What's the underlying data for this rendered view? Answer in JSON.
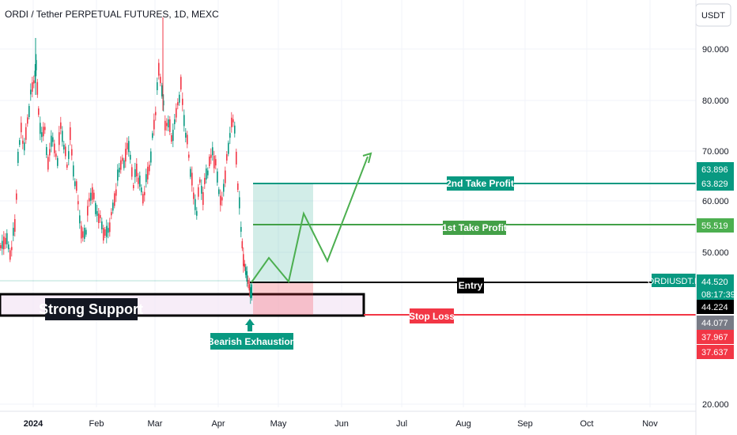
{
  "header": {
    "title": "ORDI / Tether PERPETUAL FUTURES, 1D, MEXC",
    "currency_button": "USDT"
  },
  "chart_data": {
    "type": "candlestick",
    "symbol_tag": "ORDIUSDT.P",
    "y_axis": {
      "ticks": [
        90,
        80,
        70,
        60,
        50,
        20
      ],
      "tick_labels": [
        "90.000",
        "80.000",
        "70.000",
        "60.000",
        "50.000",
        "20.000"
      ]
    },
    "x_axis": {
      "tick_labels": [
        "2024",
        "Feb",
        "Mar",
        "Apr",
        "May",
        "Jun",
        "Jul",
        "Aug",
        "Sep",
        "Oct",
        "Nov"
      ]
    },
    "price_tags": [
      {
        "label": "63.896",
        "value": 63.896,
        "color": "#089981"
      },
      {
        "label": "63.829",
        "value": 63.829,
        "color": "#089981"
      },
      {
        "label": "55.519",
        "value": 55.519,
        "color": "#4caf50"
      },
      {
        "label": "44.520",
        "value": 44.52,
        "color": "#089981",
        "sub": "08:17:39"
      },
      {
        "label": "44.224",
        "value": 44.224,
        "color": "#000000"
      },
      {
        "label": "44.077",
        "value": 44.077,
        "color": "#787b86"
      },
      {
        "label": "37.967",
        "value": 37.967,
        "color": "#f23645"
      },
      {
        "label": "37.637",
        "value": 37.637,
        "color": "#f23645"
      }
    ],
    "levels": [
      {
        "name": "2nd Take Profit",
        "value": 63.829,
        "color": "#089981"
      },
      {
        "name": "1st Take Profit",
        "value": 55.519,
        "color": "#43a047"
      },
      {
        "name": "Entry",
        "value": 44.224,
        "color": "#000000"
      },
      {
        "name": "Stop Loss",
        "value": 40.2,
        "color": "#f23645"
      }
    ],
    "annotations": {
      "support_label": "Strong Support",
      "exhaustion_label": "Bearish Exhaustion"
    },
    "colors": {
      "up": "#089981",
      "down": "#f23645"
    }
  }
}
